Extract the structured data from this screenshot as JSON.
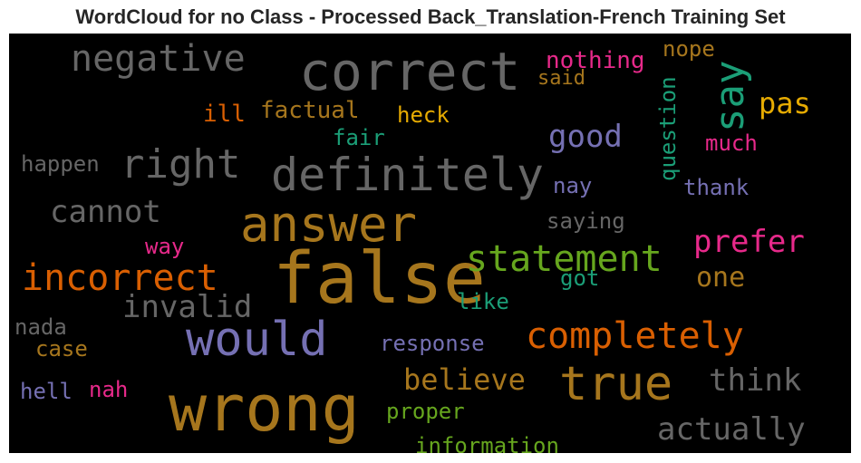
{
  "chart_data": {
    "type": "wordcloud",
    "title": "WordCloud for no Class - Processed Back_Translation-French Training Set",
    "background": "#000000",
    "colormap": [
      "#1b9e77",
      "#d95f02",
      "#7570b3",
      "#e7298a",
      "#66a61e",
      "#e6ab02",
      "#a6761d",
      "#666666"
    ],
    "words": [
      {
        "text": "false",
        "color": "#a6761d"
      },
      {
        "text": "wrong",
        "color": "#a6761d"
      },
      {
        "text": "correct",
        "color": "#666666"
      },
      {
        "text": "answer",
        "color": "#a6761d"
      },
      {
        "text": "definitely",
        "color": "#666666"
      },
      {
        "text": "would",
        "color": "#7570b3"
      },
      {
        "text": "true",
        "color": "#a6761d"
      },
      {
        "text": "negative",
        "color": "#666666"
      },
      {
        "text": "incorrect",
        "color": "#d95f02"
      },
      {
        "text": "statement",
        "color": "#66a61e"
      },
      {
        "text": "completely",
        "color": "#d95f02"
      },
      {
        "text": "right",
        "color": "#666666"
      },
      {
        "text": "say",
        "color": "#1b9e77"
      },
      {
        "text": "actually",
        "color": "#666666"
      },
      {
        "text": "cannot",
        "color": "#666666"
      },
      {
        "text": "invalid",
        "color": "#666666"
      },
      {
        "text": "believe",
        "color": "#a6761d"
      },
      {
        "text": "think",
        "color": "#666666"
      },
      {
        "text": "prefer",
        "color": "#e7298a"
      },
      {
        "text": "good",
        "color": "#7570b3"
      },
      {
        "text": "pas",
        "color": "#e6ab02"
      },
      {
        "text": "one",
        "color": "#a6761d"
      },
      {
        "text": "information",
        "color": "#66a61e"
      },
      {
        "text": "factual",
        "color": "#a6761d"
      },
      {
        "text": "nothing",
        "color": "#e7298a"
      },
      {
        "text": "question",
        "color": "#1b9e77"
      },
      {
        "text": "happen",
        "color": "#666666"
      },
      {
        "text": "saying",
        "color": "#666666"
      },
      {
        "text": "response",
        "color": "#7570b3"
      },
      {
        "text": "proper",
        "color": "#66a61e"
      },
      {
        "text": "heck",
        "color": "#e6ab02"
      },
      {
        "text": "much",
        "color": "#e7298a"
      },
      {
        "text": "thank",
        "color": "#7570b3"
      },
      {
        "text": "nope",
        "color": "#a6761d"
      },
      {
        "text": "like",
        "color": "#1b9e77"
      },
      {
        "text": "nada",
        "color": "#666666"
      },
      {
        "text": "case",
        "color": "#a6761d"
      },
      {
        "text": "hell",
        "color": "#7570b3"
      },
      {
        "text": "nah",
        "color": "#e7298a"
      },
      {
        "text": "ill",
        "color": "#d95f02"
      },
      {
        "text": "fair",
        "color": "#1b9e77"
      },
      {
        "text": "said",
        "color": "#a6761d"
      },
      {
        "text": "way",
        "color": "#e7298a"
      },
      {
        "text": "nay",
        "color": "#7570b3"
      },
      {
        "text": "got",
        "color": "#1b9e77"
      }
    ]
  }
}
